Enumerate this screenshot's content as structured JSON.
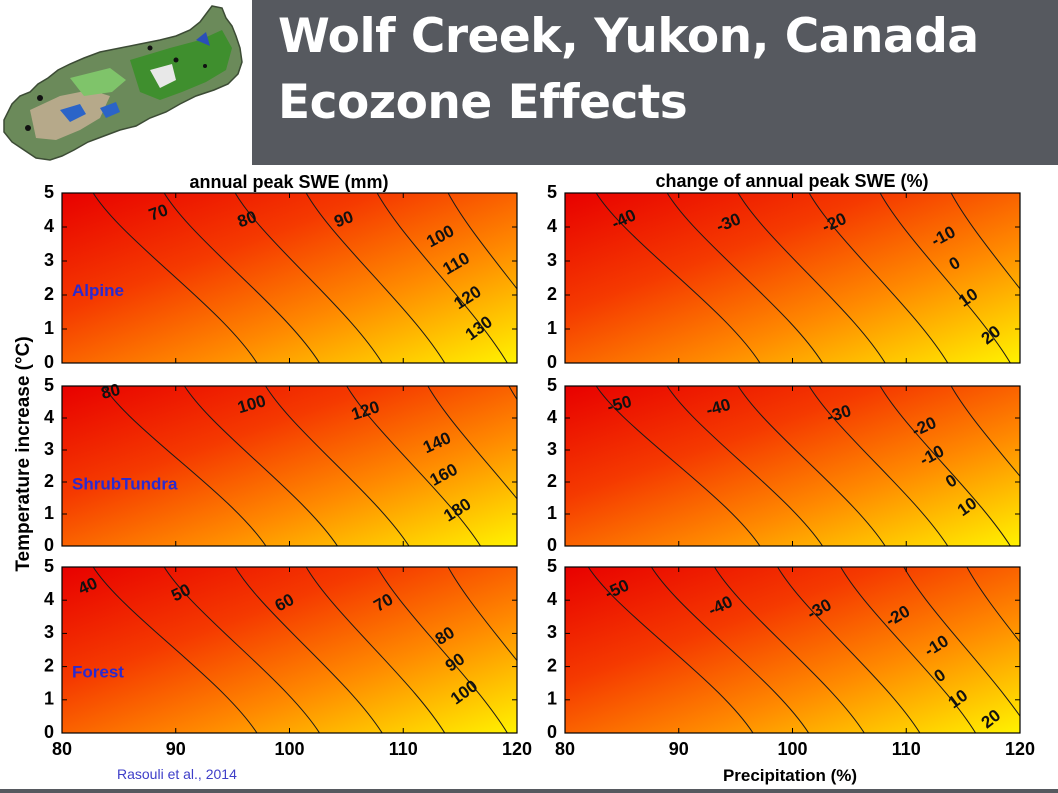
{
  "slide": {
    "title_line1": "Wolf Creek, Yukon, Canada",
    "title_line2": "Ecozone Effects",
    "citation": "Rasouli et al., 2014"
  },
  "colors": {
    "header_bg": "#56595f",
    "title_text": "#ffffff",
    "zone_label": "#2a2ad0",
    "citation_text": "#3e3ec8",
    "ramp_low": "#e60000",
    "ramp_high": "#ffee00"
  },
  "figure": {
    "column_titles": [
      "annual peak  SWE (mm)",
      "change of annual peak SWE (%)"
    ],
    "ylabel": "Temperature increase (°C)",
    "xlabel": "Precipitation (%)"
  },
  "chart_data": [
    {
      "type": "heatmap",
      "id": "alpine-swe",
      "title": "annual peak  SWE (mm)",
      "zone": "Alpine",
      "x_ticks": [
        "80",
        "90",
        "100",
        "110",
        "120"
      ],
      "y_ticks": [
        "0",
        "1",
        "2",
        "3",
        "4",
        "5"
      ],
      "xlim": [
        80,
        120
      ],
      "ylim": [
        0,
        5
      ],
      "contour_levels": [
        70,
        80,
        90,
        100,
        110,
        120,
        130
      ],
      "value_range": [
        62,
        140
      ]
    },
    {
      "type": "heatmap",
      "id": "alpine-change",
      "title": "change of annual peak SWE (%)",
      "zone": "Alpine",
      "x_ticks": [
        "80",
        "90",
        "100",
        "110",
        "120"
      ],
      "y_ticks": [
        "0",
        "1",
        "2",
        "3",
        "4",
        "5"
      ],
      "xlim": [
        80,
        120
      ],
      "ylim": [
        0,
        5
      ],
      "contour_levels": [
        -40,
        -30,
        -20,
        -10,
        0,
        10,
        20
      ],
      "value_range": [
        -48,
        28
      ]
    },
    {
      "type": "heatmap",
      "id": "shrub-swe",
      "title": "",
      "zone": "ShrubTundra",
      "x_ticks": [
        "80",
        "90",
        "100",
        "110",
        "120"
      ],
      "y_ticks": [
        "0",
        "1",
        "2",
        "3",
        "4",
        "5"
      ],
      "xlim": [
        80,
        120
      ],
      "ylim": [
        0,
        5
      ],
      "contour_levels": [
        80,
        100,
        120,
        140,
        160,
        180
      ],
      "value_range": [
        68,
        195
      ]
    },
    {
      "type": "heatmap",
      "id": "shrub-change",
      "title": "",
      "zone": "ShrubTundra",
      "x_ticks": [
        "80",
        "90",
        "100",
        "110",
        "120"
      ],
      "y_ticks": [
        "0",
        "1",
        "2",
        "3",
        "4",
        "5"
      ],
      "xlim": [
        80,
        120
      ],
      "ylim": [
        0,
        5
      ],
      "contour_levels": [
        -50,
        -40,
        -30,
        -20,
        -10,
        0,
        10
      ],
      "value_range": [
        -58,
        18
      ]
    },
    {
      "type": "heatmap",
      "id": "forest-swe",
      "title": "",
      "zone": "Forest",
      "x_ticks": [
        "80",
        "90",
        "100",
        "110",
        "120"
      ],
      "y_ticks": [
        "0",
        "1",
        "2",
        "3",
        "4",
        "5"
      ],
      "xlim": [
        80,
        120
      ],
      "ylim": [
        0,
        5
      ],
      "contour_levels": [
        40,
        50,
        60,
        70,
        80,
        90,
        100
      ],
      "value_range": [
        33,
        110
      ]
    },
    {
      "type": "heatmap",
      "id": "forest-change",
      "title": "",
      "zone": "Forest",
      "x_ticks": [
        "80",
        "90",
        "100",
        "110",
        "120"
      ],
      "y_ticks": [
        "0",
        "1",
        "2",
        "3",
        "4",
        "5"
      ],
      "xlim": [
        80,
        120
      ],
      "ylim": [
        0,
        5
      ],
      "contour_levels": [
        -50,
        -40,
        -30,
        -20,
        -10,
        0,
        10,
        20
      ],
      "value_range": [
        -58,
        28
      ]
    }
  ]
}
